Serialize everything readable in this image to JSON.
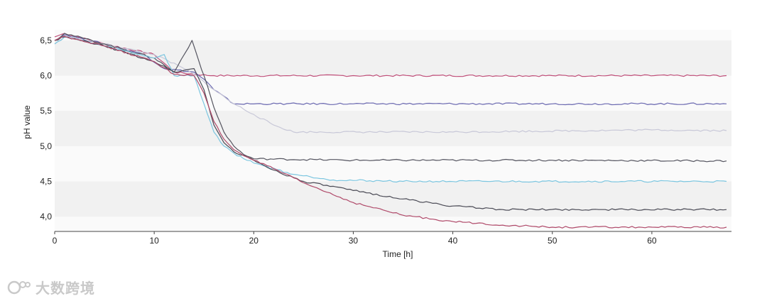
{
  "chart_data": {
    "type": "line",
    "xlabel": "Time [h]",
    "ylabel": "pH value",
    "xlim": [
      0,
      68
    ],
    "ylim": [
      3.8,
      6.65
    ],
    "x_ticks": [
      0,
      10,
      20,
      30,
      40,
      50,
      60
    ],
    "y_ticks": [
      4.0,
      4.5,
      5.0,
      5.5,
      6.0,
      6.5
    ],
    "y_tick_labels": [
      "4,0",
      "4,5",
      "5,0",
      "5,5",
      "6,0",
      "6,5"
    ],
    "grid": "horizontal bands",
    "legend": "none",
    "series": [
      {
        "color": "#c0507a",
        "points": [
          [
            0,
            6.55
          ],
          [
            1,
            6.6
          ],
          [
            5,
            6.45
          ],
          [
            10,
            6.3
          ],
          [
            12,
            6.05
          ],
          [
            14,
            6.02
          ],
          [
            16,
            6.0
          ],
          [
            30,
            6.0
          ],
          [
            50,
            6.0
          ],
          [
            67.5,
            6.0
          ]
        ]
      },
      {
        "color": "#6a68b0",
        "points": [
          [
            0,
            6.5
          ],
          [
            1,
            6.58
          ],
          [
            5,
            6.45
          ],
          [
            9,
            6.3
          ],
          [
            11,
            6.1
          ],
          [
            14,
            6.05
          ],
          [
            15,
            5.95
          ],
          [
            16,
            5.8
          ],
          [
            18,
            5.6
          ],
          [
            30,
            5.6
          ],
          [
            50,
            5.6
          ],
          [
            67.5,
            5.6
          ]
        ]
      },
      {
        "color": "#c8c8d8",
        "points": [
          [
            0,
            6.45
          ],
          [
            1,
            6.55
          ],
          [
            5,
            6.45
          ],
          [
            10,
            6.3
          ],
          [
            13,
            6.1
          ],
          [
            14,
            6.02
          ],
          [
            16,
            5.8
          ],
          [
            18,
            5.6
          ],
          [
            20,
            5.45
          ],
          [
            22,
            5.3
          ],
          [
            24,
            5.2
          ],
          [
            40,
            5.2
          ],
          [
            60,
            5.23
          ],
          [
            67.5,
            5.22
          ]
        ]
      },
      {
        "color": "#555560",
        "points": [
          [
            0,
            6.5
          ],
          [
            1,
            6.6
          ],
          [
            5,
            6.45
          ],
          [
            10,
            6.25
          ],
          [
            12,
            6.05
          ],
          [
            13.8,
            6.5
          ],
          [
            14.5,
            6.2
          ],
          [
            15,
            6.0
          ],
          [
            16,
            5.55
          ],
          [
            17,
            5.2
          ],
          [
            18,
            5.0
          ],
          [
            19,
            4.88
          ],
          [
            20,
            4.82
          ],
          [
            30,
            4.8
          ],
          [
            50,
            4.8
          ],
          [
            67.5,
            4.79
          ]
        ]
      },
      {
        "color": "#7cc6e0",
        "points": [
          [
            0,
            6.45
          ],
          [
            1,
            6.55
          ],
          [
            5,
            6.42
          ],
          [
            10,
            6.25
          ],
          [
            11,
            6.3
          ],
          [
            12,
            6.0
          ],
          [
            14,
            6.0
          ],
          [
            15,
            5.6
          ],
          [
            16,
            5.2
          ],
          [
            17,
            5.0
          ],
          [
            18,
            4.9
          ],
          [
            19,
            4.82
          ],
          [
            21,
            4.72
          ],
          [
            24,
            4.6
          ],
          [
            28,
            4.52
          ],
          [
            35,
            4.5
          ],
          [
            50,
            4.5
          ],
          [
            67.5,
            4.5
          ]
        ]
      },
      {
        "color": "#4a4a55",
        "points": [
          [
            0,
            6.5
          ],
          [
            1,
            6.55
          ],
          [
            5,
            6.42
          ],
          [
            10,
            6.2
          ],
          [
            12,
            6.05
          ],
          [
            14,
            6.1
          ],
          [
            15,
            5.8
          ],
          [
            16,
            5.3
          ],
          [
            17,
            5.05
          ],
          [
            18,
            4.92
          ],
          [
            20,
            4.8
          ],
          [
            22,
            4.66
          ],
          [
            25,
            4.5
          ],
          [
            30,
            4.37
          ],
          [
            35,
            4.25
          ],
          [
            40,
            4.15
          ],
          [
            45,
            4.1
          ],
          [
            55,
            4.1
          ],
          [
            67.5,
            4.1
          ]
        ]
      },
      {
        "color": "#b04a6a",
        "points": [
          [
            0,
            6.5
          ],
          [
            1,
            6.56
          ],
          [
            5,
            6.42
          ],
          [
            10,
            6.2
          ],
          [
            12,
            6.02
          ],
          [
            14,
            6.0
          ],
          [
            15,
            5.75
          ],
          [
            16,
            5.35
          ],
          [
            17,
            5.1
          ],
          [
            18,
            4.95
          ],
          [
            20,
            4.8
          ],
          [
            22,
            4.68
          ],
          [
            25,
            4.48
          ],
          [
            30,
            4.2
          ],
          [
            35,
            4.02
          ],
          [
            40,
            3.93
          ],
          [
            45,
            3.88
          ],
          [
            50,
            3.85
          ],
          [
            60,
            3.85
          ],
          [
            67.5,
            3.85
          ]
        ]
      }
    ]
  },
  "watermark": {
    "icon": "ks-logo-icon",
    "text": "大数跨境"
  }
}
